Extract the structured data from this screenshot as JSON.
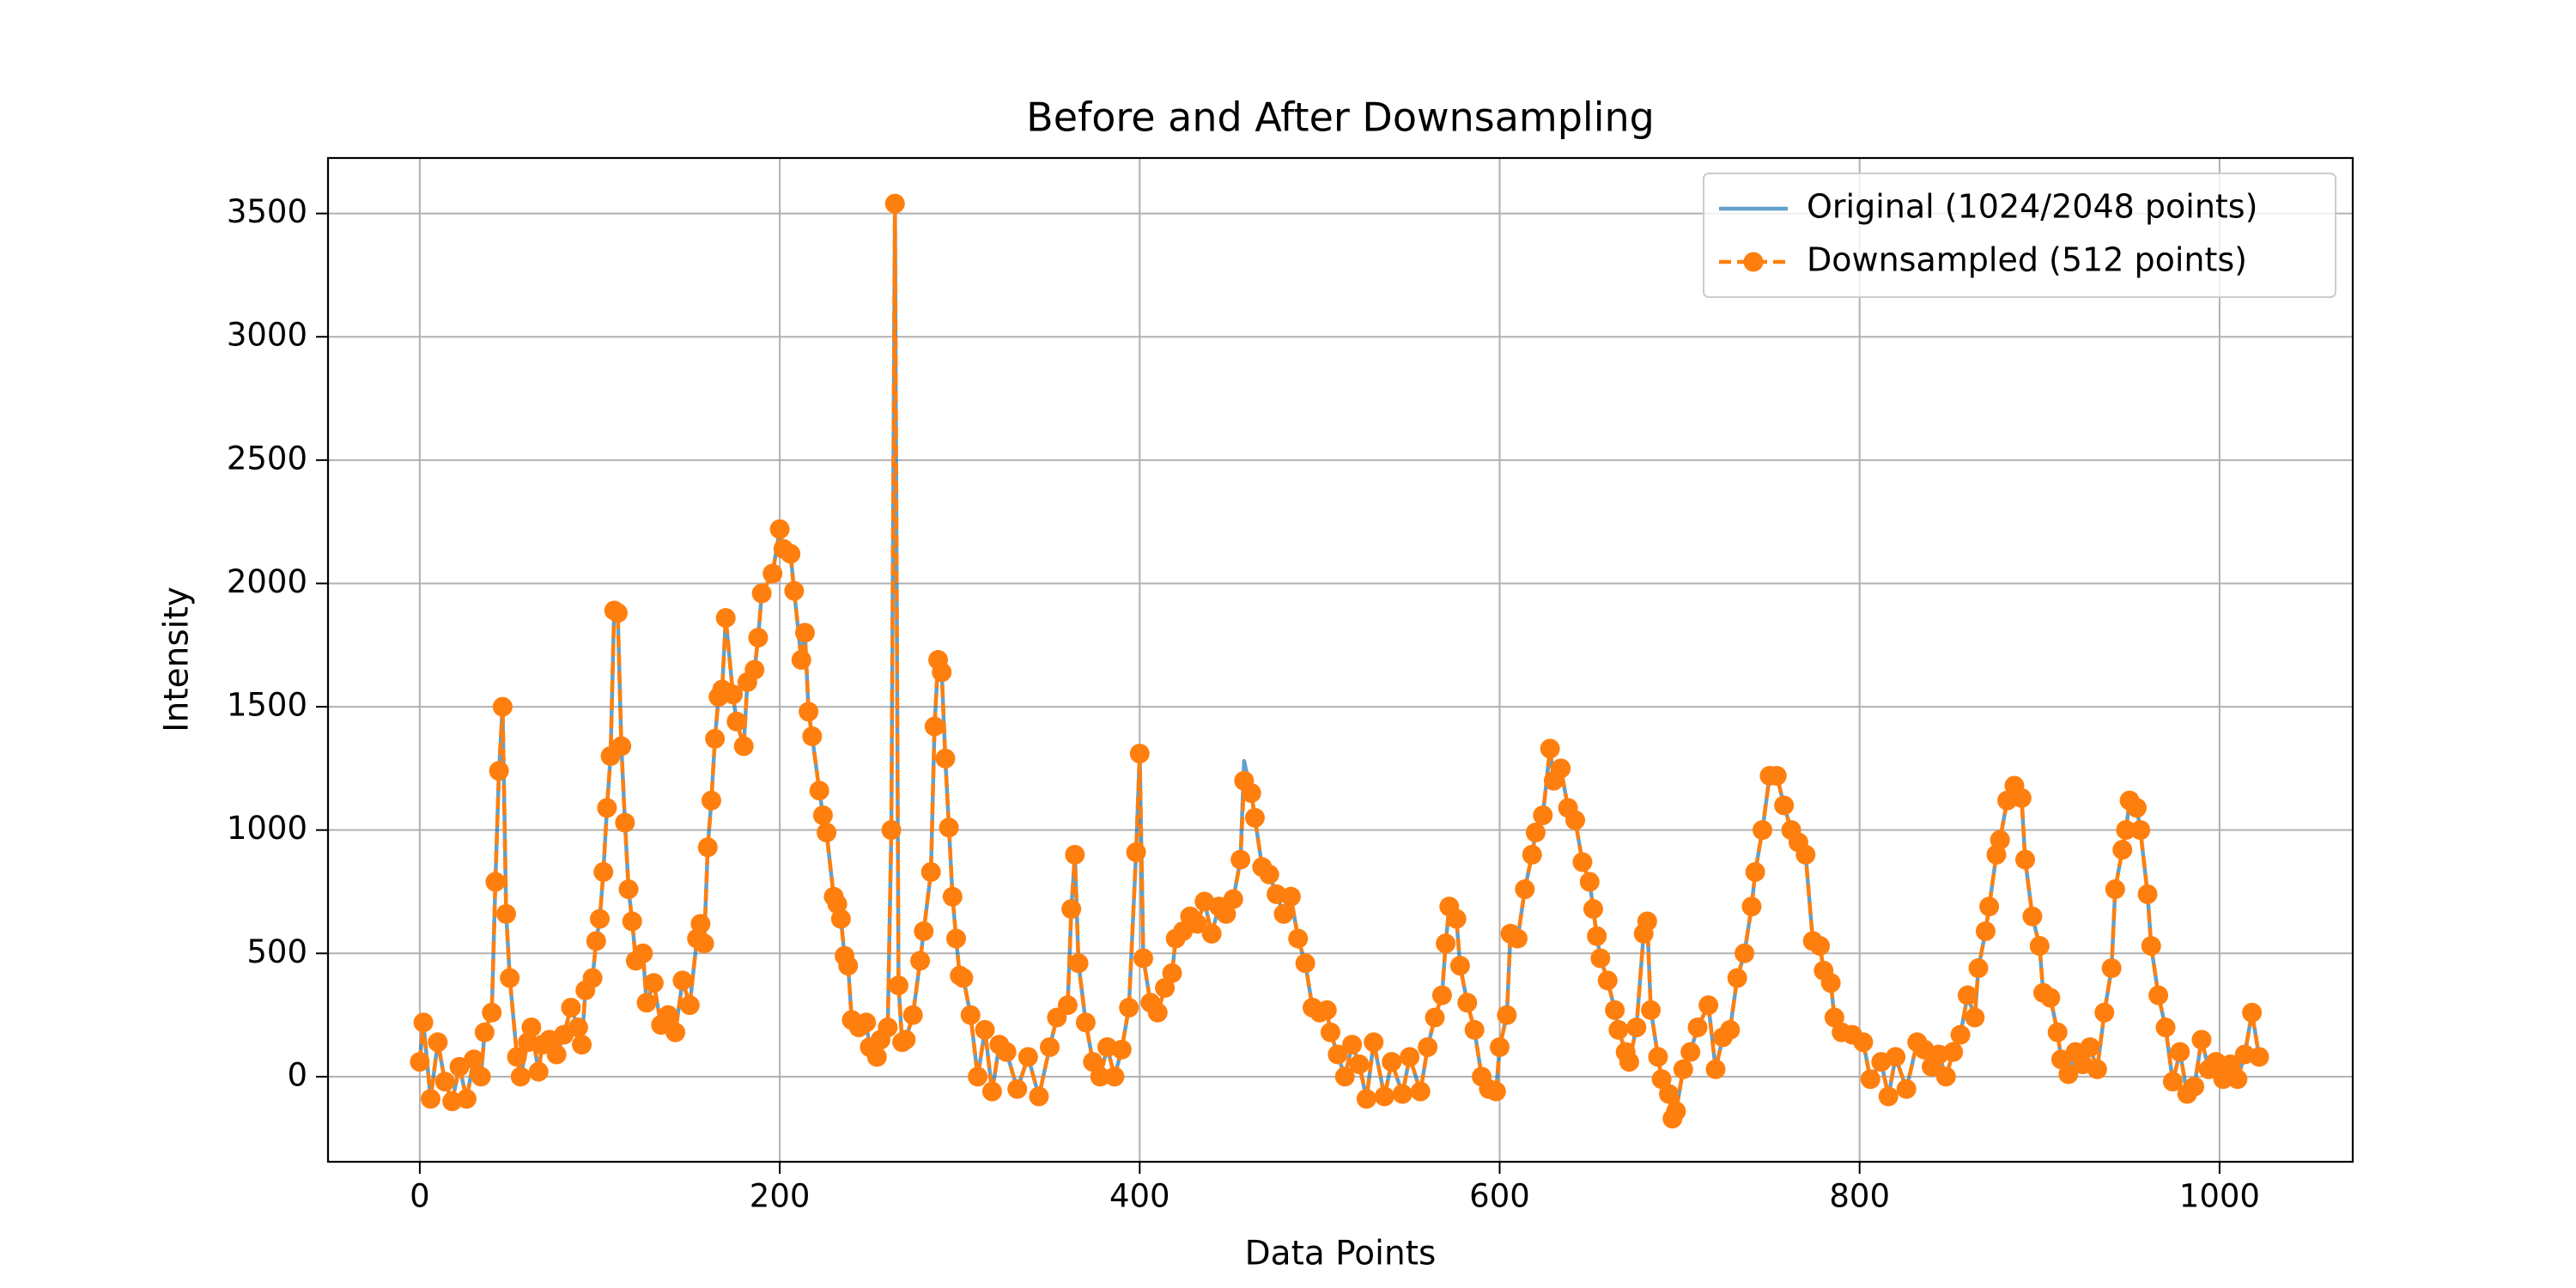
{
  "chart_data": {
    "type": "line",
    "title": "Before and After Downsampling",
    "xlabel": "Data Points",
    "ylabel": "Intensity",
    "xlim": [
      -51,
      1074
    ],
    "ylim": [
      -345,
      3725
    ],
    "xticks": [
      0,
      200,
      400,
      600,
      800,
      1000
    ],
    "yticks": [
      0,
      500,
      1000,
      1500,
      2000,
      2500,
      3000,
      3500
    ],
    "grid": true,
    "legend": "upper right",
    "x": [
      0,
      2,
      6,
      10,
      14,
      18,
      22,
      26,
      30,
      34,
      36,
      40,
      42,
      44,
      46,
      48,
      50,
      54,
      56,
      60,
      62,
      66,
      68,
      72,
      76,
      80,
      84,
      88,
      90,
      92,
      96,
      98,
      100,
      102,
      104,
      106,
      108,
      110,
      112,
      114,
      116,
      118,
      120,
      124,
      126,
      130,
      134,
      138,
      142,
      146,
      150,
      154,
      156,
      158,
      160,
      162,
      164,
      166,
      168,
      170,
      174,
      176,
      180,
      182,
      186,
      188,
      190,
      196,
      200,
      202,
      206,
      208,
      212,
      214,
      216,
      218,
      222,
      224,
      226,
      230,
      232,
      234,
      236,
      238,
      240,
      244,
      248,
      250,
      254,
      256,
      260,
      262,
      264,
      266,
      268,
      270,
      274,
      278,
      280,
      284,
      286,
      288,
      290,
      292,
      294,
      296,
      298,
      300,
      302,
      306,
      310,
      314,
      318,
      322,
      326,
      332,
      338,
      344,
      350,
      354,
      360,
      362,
      364,
      366,
      370,
      374,
      378,
      382,
      386,
      390,
      394,
      398,
      400,
      402,
      406,
      410,
      414,
      418,
      420,
      424,
      428,
      432,
      436,
      440,
      444,
      448,
      452,
      456,
      458,
      462,
      464,
      468,
      472,
      476,
      480,
      484,
      488,
      492,
      496,
      500,
      504,
      506,
      510,
      514,
      518,
      522,
      526,
      530,
      536,
      540,
      546,
      550,
      556,
      560,
      564,
      568,
      570,
      572,
      576,
      578,
      582,
      586,
      590,
      594,
      598,
      600,
      604,
      606,
      610,
      614,
      618,
      620,
      624,
      628,
      630,
      634,
      638,
      642,
      646,
      650,
      652,
      654,
      656,
      660,
      664,
      666,
      670,
      672,
      676,
      680,
      682,
      684,
      688,
      690,
      694,
      696,
      698,
      702,
      706,
      710,
      716,
      720,
      724,
      728,
      732,
      736,
      740,
      742,
      746,
      750,
      754,
      758,
      762,
      766,
      770,
      774,
      778,
      780,
      784,
      786,
      790,
      796,
      802,
      806,
      812,
      816,
      820,
      826,
      832,
      836,
      840,
      844,
      848,
      852,
      856,
      860,
      864,
      866,
      870,
      872,
      876,
      878,
      882,
      886,
      890,
      892,
      896,
      900,
      902,
      906,
      910,
      912,
      916,
      920,
      924,
      928,
      932,
      936,
      940,
      942,
      946,
      948,
      950,
      954,
      956,
      960,
      962,
      966,
      970,
      974,
      978,
      982,
      986,
      990,
      994,
      998,
      1002,
      1006,
      1010,
      1014,
      1018,
      1022
    ],
    "series": [
      {
        "name": "Original (1024/2048 points)",
        "color": "#1f77b4",
        "opacity": 0.7,
        "linestyle": "solid",
        "marker": false,
        "values": [
          60,
          220,
          -90,
          140,
          -20,
          -100,
          40,
          -90,
          70,
          0,
          180,
          260,
          790,
          1240,
          1500,
          660,
          400,
          80,
          0,
          140,
          200,
          20,
          130,
          150,
          90,
          170,
          280,
          200,
          130,
          350,
          400,
          550,
          640,
          830,
          1090,
          1300,
          1890,
          1880,
          1340,
          1030,
          760,
          630,
          470,
          500,
          300,
          380,
          210,
          250,
          180,
          390,
          290,
          560,
          620,
          540,
          930,
          1120,
          1370,
          1540,
          1570,
          1860,
          1550,
          1440,
          1340,
          1600,
          1650,
          1780,
          1960,
          2040,
          2220,
          2140,
          2120,
          1970,
          1690,
          1800,
          1480,
          1380,
          1160,
          1060,
          990,
          730,
          700,
          640,
          490,
          450,
          230,
          200,
          220,
          120,
          80,
          150,
          200,
          1000,
          3540,
          370,
          140,
          150,
          250,
          470,
          590,
          830,
          1420,
          1690,
          1640,
          1290,
          1010,
          730,
          560,
          410,
          400,
          250,
          0,
          190,
          -60,
          130,
          100,
          -50,
          80,
          -80,
          120,
          240,
          290,
          680,
          900,
          460,
          220,
          60,
          0,
          120,
          0,
          110,
          280,
          910,
          1310,
          480,
          300,
          260,
          360,
          420,
          560,
          590,
          650,
          620,
          710,
          580,
          690,
          660,
          720,
          880,
          1280,
          1150,
          1050,
          850,
          820,
          740,
          660,
          730,
          560,
          460,
          280,
          260,
          270,
          180,
          90,
          0,
          130,
          50,
          -90,
          140,
          -80,
          60,
          -70,
          80,
          -60,
          120,
          240,
          330,
          540,
          690,
          640,
          450,
          300,
          190,
          0,
          -50,
          -60,
          120,
          250,
          580,
          560,
          760,
          900,
          990,
          1060,
          1330,
          1200,
          1250,
          1090,
          1040,
          870,
          790,
          680,
          570,
          480,
          390,
          270,
          190,
          100,
          60,
          200,
          580,
          630,
          270,
          80,
          -10,
          -70,
          -170,
          -140,
          30,
          100,
          200,
          290,
          30,
          160,
          190,
          400,
          500,
          690,
          830,
          1000,
          1220,
          1220,
          1100,
          1000,
          950,
          900,
          550,
          530,
          430,
          380,
          240,
          180,
          170,
          140,
          -10,
          60,
          -80,
          80,
          -50,
          140,
          110,
          40,
          90,
          0,
          100,
          170,
          330,
          240,
          440,
          590,
          690,
          900,
          960,
          1120,
          1180,
          1130,
          880,
          650,
          530,
          340,
          320,
          180,
          70,
          10,
          100,
          50,
          120,
          30,
          260,
          440,
          760,
          920,
          1000,
          1120,
          1090,
          1000,
          740,
          530,
          330,
          200,
          -20,
          100,
          -70,
          -40,
          150,
          30,
          60,
          -10,
          50,
          -10,
          90,
          260,
          80
        ]
      },
      {
        "name": "Downsampled (512 points)",
        "color": "#ff7f0e",
        "opacity": 1,
        "linestyle": "dashed",
        "marker": true,
        "values": [
          60,
          220,
          -90,
          140,
          -20,
          -100,
          40,
          -90,
          70,
          0,
          180,
          260,
          790,
          1240,
          1500,
          660,
          400,
          80,
          0,
          140,
          200,
          20,
          130,
          150,
          90,
          170,
          280,
          200,
          130,
          350,
          400,
          550,
          640,
          830,
          1090,
          1300,
          1890,
          1880,
          1340,
          1030,
          760,
          630,
          470,
          500,
          300,
          380,
          210,
          250,
          180,
          390,
          290,
          560,
          620,
          540,
          930,
          1120,
          1370,
          1540,
          1570,
          1860,
          1550,
          1440,
          1340,
          1600,
          1650,
          1780,
          1960,
          2040,
          2220,
          2140,
          2120,
          1970,
          1690,
          1800,
          1480,
          1380,
          1160,
          1060,
          990,
          730,
          700,
          640,
          490,
          450,
          230,
          200,
          220,
          120,
          80,
          150,
          200,
          1000,
          3540,
          370,
          140,
          150,
          250,
          470,
          590,
          830,
          1420,
          1690,
          1640,
          1290,
          1010,
          730,
          560,
          410,
          400,
          250,
          0,
          190,
          -60,
          130,
          100,
          -50,
          80,
          -80,
          120,
          240,
          290,
          680,
          900,
          460,
          220,
          60,
          0,
          120,
          0,
          110,
          280,
          910,
          1310,
          480,
          300,
          260,
          360,
          420,
          560,
          590,
          650,
          620,
          710,
          580,
          690,
          660,
          720,
          880,
          1200,
          1150,
          1050,
          850,
          820,
          740,
          660,
          730,
          560,
          460,
          280,
          260,
          270,
          180,
          90,
          0,
          130,
          50,
          -90,
          140,
          -80,
          60,
          -70,
          80,
          -60,
          120,
          240,
          330,
          540,
          690,
          640,
          450,
          300,
          190,
          0,
          -50,
          -60,
          120,
          250,
          580,
          560,
          760,
          900,
          990,
          1060,
          1330,
          1200,
          1250,
          1090,
          1040,
          870,
          790,
          680,
          570,
          480,
          390,
          270,
          190,
          100,
          60,
          200,
          580,
          630,
          270,
          80,
          -10,
          -70,
          -170,
          -140,
          30,
          100,
          200,
          290,
          30,
          160,
          190,
          400,
          500,
          690,
          830,
          1000,
          1220,
          1220,
          1100,
          1000,
          950,
          900,
          550,
          530,
          430,
          380,
          240,
          180,
          170,
          140,
          -10,
          60,
          -80,
          80,
          -50,
          140,
          110,
          40,
          90,
          0,
          100,
          170,
          330,
          240,
          440,
          590,
          690,
          900,
          960,
          1120,
          1180,
          1130,
          880,
          650,
          530,
          340,
          320,
          180,
          70,
          10,
          100,
          50,
          120,
          30,
          260,
          440,
          760,
          920,
          1000,
          1120,
          1090,
          1000,
          740,
          530,
          330,
          200,
          -20,
          100,
          -70,
          -40,
          150,
          30,
          60,
          -10,
          50,
          -10,
          90,
          260,
          80
        ]
      }
    ]
  }
}
